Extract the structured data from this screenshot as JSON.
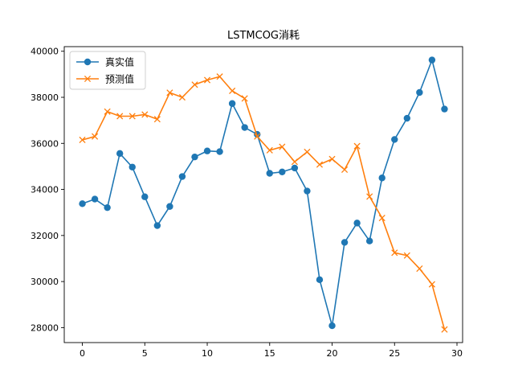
{
  "chart_data": {
    "type": "line",
    "title": "LSTMCOG消耗",
    "xlabel": "",
    "ylabel": "",
    "xlim": [
      -1.45,
      30.45
    ],
    "ylim": [
      27350,
      40200
    ],
    "xticks": [
      0,
      5,
      10,
      15,
      20,
      25,
      30
    ],
    "yticks": [
      28000,
      30000,
      32000,
      34000,
      36000,
      38000,
      40000
    ],
    "grid": false,
    "legend_position": "top-left",
    "x": [
      0,
      1,
      2,
      3,
      4,
      5,
      6,
      7,
      8,
      9,
      10,
      11,
      12,
      13,
      14,
      15,
      16,
      17,
      18,
      19,
      20,
      21,
      22,
      23,
      24,
      25,
      26,
      27,
      28,
      29
    ],
    "series": [
      {
        "name": "真实值",
        "color": "#1f77b4",
        "marker": "circle",
        "values": [
          33380,
          33580,
          33210,
          35560,
          34970,
          33680,
          32430,
          33260,
          34560,
          35410,
          35670,
          35640,
          37730,
          36690,
          36390,
          34700,
          34760,
          34930,
          33930,
          30080,
          28080,
          31700,
          32540,
          31760,
          34500,
          36170,
          37090,
          38210,
          39620,
          37490
        ]
      },
      {
        "name": "预测值",
        "color": "#ff7f0e",
        "marker": "x",
        "values": [
          36150,
          36300,
          37380,
          37180,
          37180,
          37250,
          37050,
          38200,
          38000,
          38550,
          38750,
          38900,
          38280,
          37950,
          36300,
          35700,
          35850,
          35200,
          35630,
          35080,
          35320,
          34860,
          35880,
          33690,
          32760,
          31250,
          31130,
          30560,
          29880,
          27920
        ]
      }
    ]
  }
}
